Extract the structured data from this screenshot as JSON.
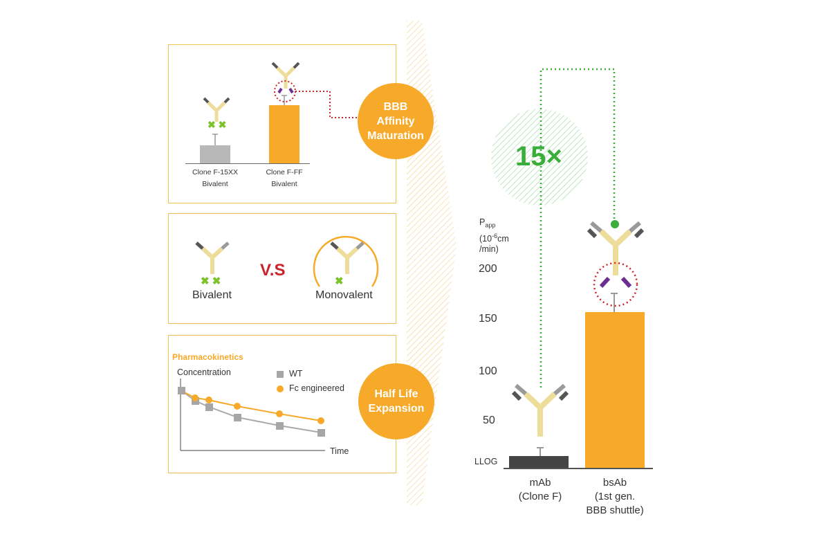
{
  "panel_affinity": {
    "bar_left_label_1": "Clone F-15XX",
    "bar_left_label_2": "Bivalent",
    "bar_right_label_1": "Clone F-FF",
    "bar_right_label_2": "Bivalent",
    "badge": "BBB Affinity Maturation"
  },
  "panel_valency": {
    "left_label": "Bivalent",
    "vs_label": "V.S",
    "right_label": "Monovalent"
  },
  "panel_pk": {
    "title": "Pharmacokinetics",
    "y_label": "Concentration",
    "x_label": "Time",
    "legend_wt": "WT",
    "legend_fc": "Fc engineered",
    "badge": "Half Life Expansion"
  },
  "main_chart": {
    "fold_label": "15×",
    "y_unit_line1": "P",
    "y_unit_sub": "app",
    "y_unit_line2_a": "(10",
    "y_unit_sup": "-6",
    "y_unit_line2_b": "cm",
    "y_unit_line3": "/min)",
    "ticks": [
      "200",
      "150",
      "100",
      "50"
    ],
    "llog_label": "LLOG",
    "cat1_line1": "mAb",
    "cat1_line2": "(Clone F)",
    "cat2_line1": "bsAb",
    "cat2_line2": "(1st gen.",
    "cat2_line3": "BBB shuttle)"
  },
  "colors": {
    "orange": "#f7a929",
    "panel_border": "#f2c24f",
    "green": "#3aad3a",
    "red_dotted": "#cc2229",
    "grey_bar": "#b8b8b8",
    "dark_bar": "#444444",
    "purple": "#6b2f8f",
    "antibody_body": "#eedc9a",
    "antibody_tip_dark": "#555555",
    "antibody_tip_light": "#9a9a9a",
    "epitope_green": "#7cc22a"
  }
}
